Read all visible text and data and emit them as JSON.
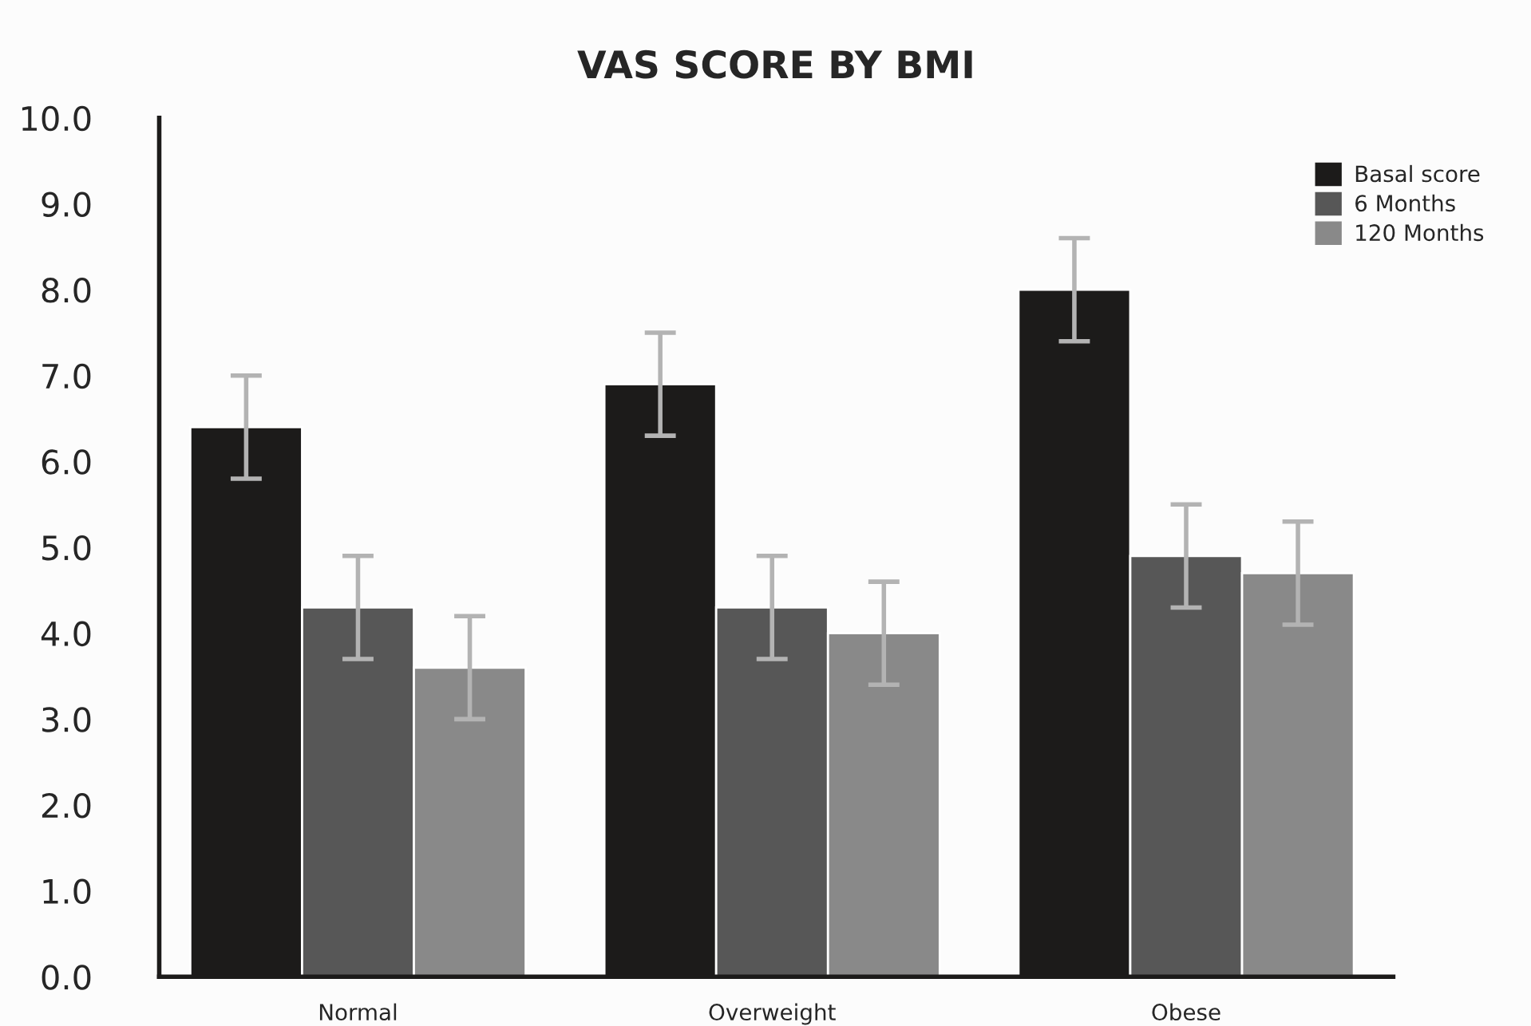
{
  "chart_data": {
    "type": "bar",
    "title": "VAS SCORE BY BMI",
    "categories": [
      "Normal",
      "Overweight",
      "Obese"
    ],
    "series": [
      {
        "name": "Basal score",
        "color": "#1c1b1a",
        "values": [
          6.4,
          6.9,
          8.0
        ],
        "errors": [
          0.6,
          0.6,
          0.6
        ]
      },
      {
        "name": "6 Months",
        "color": "#575757",
        "values": [
          4.3,
          4.3,
          4.9
        ],
        "errors": [
          0.6,
          0.6,
          0.6
        ]
      },
      {
        "name": "120 Months",
        "color": "#898989",
        "values": [
          3.6,
          4.0,
          4.7
        ],
        "errors": [
          0.6,
          0.6,
          0.6
        ]
      }
    ],
    "ylim": [
      0,
      10
    ],
    "yticks": [
      {
        "value": 0,
        "label": "0.0"
      },
      {
        "value": 1,
        "label": "1.0"
      },
      {
        "value": 2,
        "label": "2.0"
      },
      {
        "value": 3,
        "label": "3.0"
      },
      {
        "value": 4,
        "label": "4.0"
      },
      {
        "value": 5,
        "label": "5.0"
      },
      {
        "value": 6,
        "label": "6.0"
      },
      {
        "value": 7,
        "label": "7.0"
      },
      {
        "value": 8,
        "label": "8.0"
      },
      {
        "value": 9,
        "label": "9.0"
      },
      {
        "value": 10,
        "label": "10.0"
      }
    ],
    "grid": false,
    "legend": "top right"
  }
}
